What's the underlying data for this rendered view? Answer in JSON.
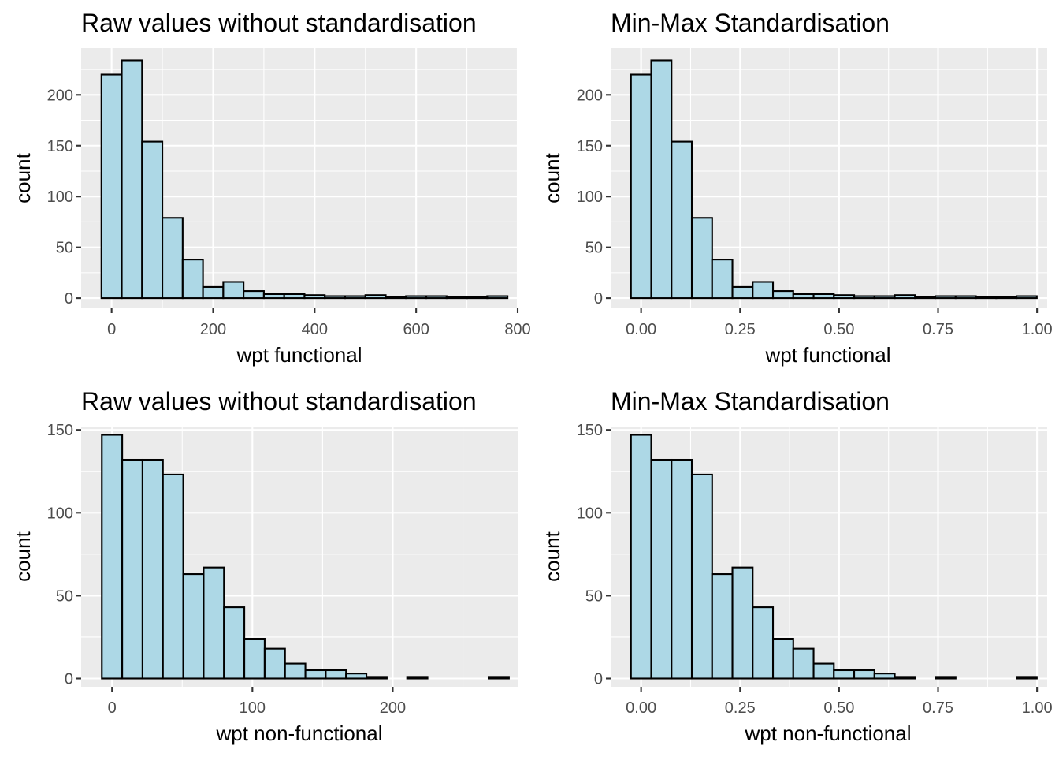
{
  "chart_data": [
    {
      "type": "bar",
      "title": "Raw values without standardisation",
      "xlabel": "wpt functional",
      "ylabel": "count",
      "bin_width": 40,
      "bin_centers": [
        0,
        40,
        80,
        120,
        160,
        200,
        240,
        280,
        320,
        360,
        400,
        440,
        480,
        520,
        560,
        600,
        640,
        680,
        720,
        760
      ],
      "values": [
        220,
        234,
        154,
        79,
        38,
        11,
        16,
        7,
        4,
        4,
        3,
        2,
        2,
        3,
        1,
        2,
        2,
        1,
        1,
        2
      ],
      "xlim": [
        -60,
        800
      ],
      "ylim": [
        -10,
        246
      ],
      "x_ticks": [
        0,
        200,
        400,
        600,
        800
      ],
      "x_tick_labels": [
        "0",
        "200",
        "400",
        "600",
        "800"
      ],
      "y_ticks": [
        0,
        50,
        100,
        150,
        200
      ],
      "y_tick_labels": [
        "0",
        "50",
        "100",
        "150",
        "200"
      ],
      "grid": true,
      "colors": {
        "fill": "#add8e6",
        "outline": "#000000",
        "panel": "#ebebeb",
        "grid": "#ffffff"
      }
    },
    {
      "type": "bar",
      "title": "Min-Max Standardisation",
      "xlabel": "wpt functional",
      "ylabel": "count",
      "bin_width": 0.05125,
      "bin_centers": [
        0,
        0.05125,
        0.1025,
        0.15375,
        0.205,
        0.25625,
        0.3075,
        0.35875,
        0.41,
        0.46125,
        0.5125,
        0.56375,
        0.615,
        0.66625,
        0.7175,
        0.76875,
        0.82,
        0.87125,
        0.9225,
        0.97375
      ],
      "values": [
        220,
        234,
        154,
        79,
        38,
        11,
        16,
        7,
        4,
        4,
        3,
        2,
        2,
        3,
        1,
        2,
        2,
        1,
        1,
        2
      ],
      "xlim": [
        -0.0769,
        1.0256
      ],
      "ylim": [
        -10,
        246
      ],
      "x_ticks": [
        0,
        0.25,
        0.5,
        0.75,
        1
      ],
      "x_tick_labels": [
        "0.00",
        "0.25",
        "0.50",
        "0.75",
        "1.00"
      ],
      "y_ticks": [
        0,
        50,
        100,
        150,
        200
      ],
      "y_tick_labels": [
        "0",
        "50",
        "100",
        "150",
        "200"
      ],
      "grid": true,
      "colors": {
        "fill": "#add8e6",
        "outline": "#000000",
        "panel": "#ebebeb",
        "grid": "#ffffff"
      }
    },
    {
      "type": "bar",
      "title": "Raw values without standardisation",
      "xlabel": "wpt non-functional",
      "ylabel": "count",
      "bin_width": 14.5,
      "bin_centers": [
        0,
        14.5,
        29,
        43.5,
        58,
        72.5,
        87,
        101.5,
        116,
        130.5,
        145,
        159.5,
        174,
        188.5,
        203,
        217.5,
        232,
        246.5,
        261,
        275.5
      ],
      "values": [
        147,
        132,
        132,
        123,
        63,
        67,
        43,
        24,
        18,
        9,
        5,
        5,
        3,
        1,
        0,
        1,
        0,
        0,
        0,
        1
      ],
      "xlim": [
        -22,
        289
      ],
      "ylim": [
        -5,
        152
      ],
      "x_ticks": [
        0,
        100,
        200
      ],
      "x_tick_labels": [
        "0",
        "100",
        "200"
      ],
      "y_ticks": [
        0,
        50,
        100,
        150
      ],
      "y_tick_labels": [
        "0",
        "50",
        "100",
        "150"
      ],
      "grid": true,
      "colors": {
        "fill": "#add8e6",
        "outline": "#000000",
        "panel": "#ebebeb",
        "grid": "#ffffff"
      }
    },
    {
      "type": "bar",
      "title": "Min-Max Standardisation",
      "xlabel": "wpt non-functional",
      "ylabel": "count",
      "bin_width": 0.05125,
      "bin_centers": [
        0,
        0.05125,
        0.1025,
        0.15375,
        0.205,
        0.25625,
        0.3075,
        0.35875,
        0.41,
        0.46125,
        0.5125,
        0.56375,
        0.615,
        0.66625,
        0.7175,
        0.76875,
        0.82,
        0.87125,
        0.9225,
        0.97375
      ],
      "values": [
        147,
        132,
        132,
        123,
        63,
        67,
        43,
        24,
        18,
        9,
        5,
        5,
        3,
        1,
        0,
        1,
        0,
        0,
        0,
        1
      ],
      "xlim": [
        -0.0769,
        1.0256
      ],
      "ylim": [
        -5,
        152
      ],
      "x_ticks": [
        0,
        0.25,
        0.5,
        0.75,
        1
      ],
      "x_tick_labels": [
        "0.00",
        "0.25",
        "0.50",
        "0.75",
        "1.00"
      ],
      "y_ticks": [
        0,
        50,
        100,
        150
      ],
      "y_tick_labels": [
        "0",
        "50",
        "100",
        "150"
      ],
      "grid": true,
      "colors": {
        "fill": "#add8e6",
        "outline": "#000000",
        "panel": "#ebebeb",
        "grid": "#ffffff"
      }
    }
  ]
}
